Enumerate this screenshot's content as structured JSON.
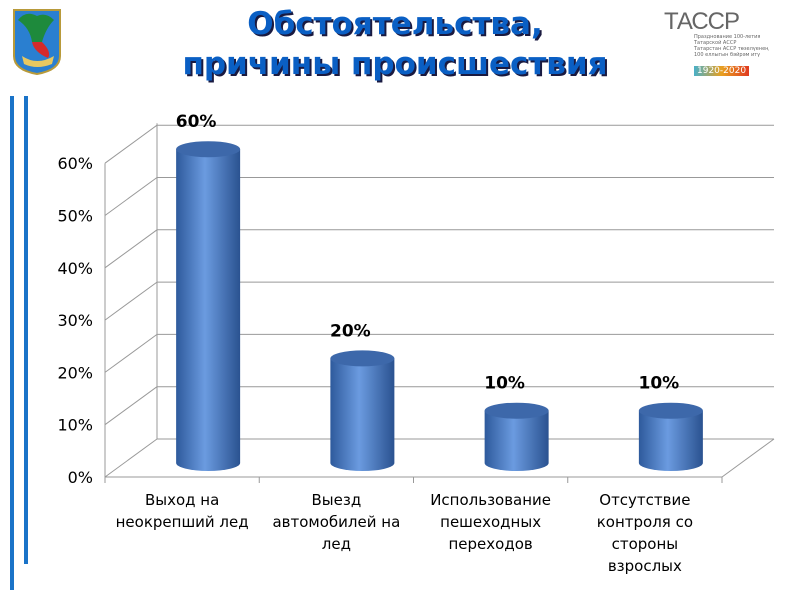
{
  "header": {
    "title_line1": "Обстоятельства,",
    "title_line2": "причины происшествия"
  },
  "logo_right": {
    "brand": "ТАССР",
    "line1": "Празднование 100-летия",
    "line2": "Татарской АССР",
    "line3": "Татарстан АССР төзелүенең",
    "line4": "100 еллыгын бәйрәм итү",
    "years": "1920-2020"
  },
  "chart_data": {
    "type": "bar",
    "style": "3d-cylinder",
    "title": "",
    "categories": [
      [
        "Выход на",
        "неокрепший лед"
      ],
      [
        "Выезд",
        "автомобилей на",
        "лед"
      ],
      [
        "Использование",
        "пешеходных",
        "переходов"
      ],
      [
        "Отсутствие",
        "контроля со",
        "стороны",
        "взрослых"
      ]
    ],
    "values": [
      60,
      20,
      10,
      10
    ],
    "data_labels": [
      "60%",
      "20%",
      "10%",
      "10%"
    ],
    "yticks": [
      "0%",
      "10%",
      "20%",
      "30%",
      "40%",
      "50%",
      "60%"
    ],
    "ylim": [
      0,
      60
    ],
    "grid": true,
    "bar_color": "#4a7cc4"
  }
}
